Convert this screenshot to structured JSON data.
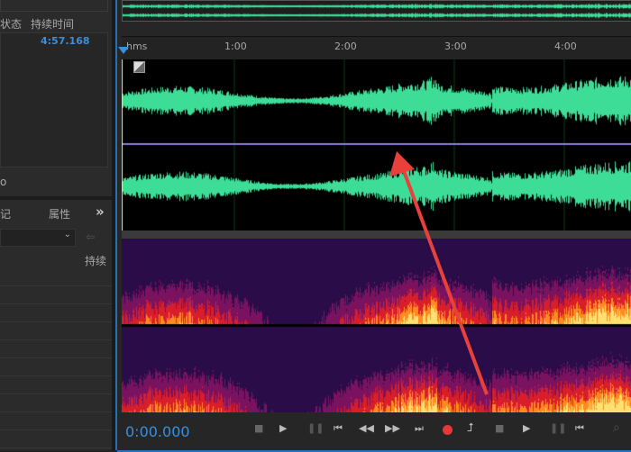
{
  "files_panel": {
    "col_status": "状态",
    "col_duration": "持续时间",
    "duration_value": "4:57.168",
    "footer_text": "o"
  },
  "markers_panel": {
    "tab_markers": "记",
    "tab_properties": "属性",
    "more": "»",
    "col_duration": "持续"
  },
  "ruler": {
    "unit": "hms",
    "ticks": [
      "1:00",
      "2:00",
      "3:00",
      "4:00"
    ]
  },
  "transport": {
    "time": "0:00.000"
  },
  "colors": {
    "waveform": "#3ddc97",
    "accent": "#3b8fdb",
    "record": "#e8363a",
    "arrow": "#e8413c",
    "center_line": "#8a7de0"
  }
}
